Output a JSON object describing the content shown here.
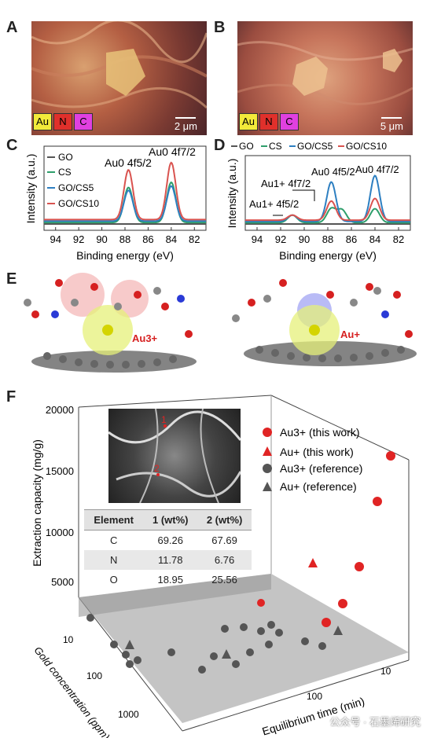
{
  "panels": {
    "a": "A",
    "b": "B",
    "c": "C",
    "d": "D",
    "e": "E",
    "f": "F"
  },
  "sem_a": {
    "legend": [
      "Au",
      "N",
      "C"
    ],
    "scale": "2 μm"
  },
  "sem_b": {
    "legend": [
      "Au",
      "N",
      "C"
    ],
    "scale": "5 μm"
  },
  "colors": {
    "GO": "#555555",
    "CS": "#2e9e6b",
    "GO_CS5": "#2d7fc1",
    "GO_CS10": "#d9534f",
    "Au_legend": "#f2ea3a",
    "N_legend": "#e0302b",
    "C_legend": "#e040e0"
  },
  "chart_data": [
    {
      "type": "line",
      "xlabel": "Binding energy (eV)",
      "ylabel": "Intensity (a.u.)",
      "xlim": [
        95,
        81
      ],
      "x_ticks": [
        94,
        92,
        90,
        88,
        86,
        84,
        82
      ],
      "legend_position": "top-left",
      "annotations": [
        "Au0 4f5/2",
        "Au0 4f7/2"
      ],
      "series": [
        {
          "name": "GO",
          "peaks": []
        },
        {
          "name": "CS",
          "peaks": [
            {
              "x": 87.7,
              "height": 0.48
            },
            {
              "x": 84.0,
              "height": 0.55
            }
          ]
        },
        {
          "name": "GO/CS5",
          "peaks": [
            {
              "x": 87.7,
              "height": 0.42
            },
            {
              "x": 84.0,
              "height": 0.48
            }
          ]
        },
        {
          "name": "GO/CS10",
          "peaks": [
            {
              "x": 87.7,
              "height": 0.68
            },
            {
              "x": 84.0,
              "height": 0.78
            }
          ]
        }
      ]
    },
    {
      "type": "line",
      "xlabel": "Binding energy (eV)",
      "ylabel": "Intensity (a.u.)",
      "xlim": [
        95,
        81
      ],
      "x_ticks": [
        94,
        92,
        90,
        88,
        86,
        84,
        82
      ],
      "legend_position": "top",
      "annotations": [
        "Au1+ 4f7/2",
        "Au0 4f5/2",
        "Au0 4f7/2",
        "Au1+ 4f5/2"
      ],
      "series": [
        {
          "name": "GO",
          "peaks": []
        },
        {
          "name": "CS",
          "peaks": [
            {
              "x": 91.0,
              "height": 0.12
            },
            {
              "x": 87.7,
              "height": 0.22
            },
            {
              "x": 86.8,
              "height": 0.2
            },
            {
              "x": 84.0,
              "height": 0.22
            }
          ]
        },
        {
          "name": "GO/CS5",
          "peaks": [
            {
              "x": 91.0,
              "height": 0.1
            },
            {
              "x": 87.7,
              "height": 0.62
            },
            {
              "x": 84.0,
              "height": 0.72
            }
          ]
        },
        {
          "name": "GO/CS10",
          "peaks": [
            {
              "x": 91.0,
              "height": 0.08
            },
            {
              "x": 87.7,
              "height": 0.3
            },
            {
              "x": 84.0,
              "height": 0.34
            }
          ]
        }
      ]
    },
    {
      "type": "scatter",
      "zlabel": "Extraction capacity (mg/g)",
      "xlabel": "Equilibrium time (min)",
      "ylabel": "Gold concentration (ppm)",
      "z_ticks": [
        5000,
        10000,
        15000,
        20000
      ],
      "x_ticks": [
        10,
        100
      ],
      "y_ticks": [
        10,
        100,
        1000
      ],
      "legend": [
        "Au3+ (this work)",
        "Au+ (this work)",
        "Au3+ (reference)",
        "Au+ (reference)"
      ],
      "legend_position": "top-right"
    }
  ],
  "panel_e": {
    "left_label": "Au3+",
    "right_label": "Au+"
  },
  "panel_f": {
    "inset_points": [
      "1",
      "2"
    ],
    "table": {
      "headers": [
        "Element",
        "1 (wt%)",
        "2 (wt%)"
      ],
      "rows": [
        [
          "C",
          "69.26",
          "67.69"
        ],
        [
          "N",
          "11.78",
          "6.76"
        ],
        [
          "O",
          "18.95",
          "25.56"
        ]
      ]
    }
  },
  "watermark": "公众号 · 石墨烯研究"
}
